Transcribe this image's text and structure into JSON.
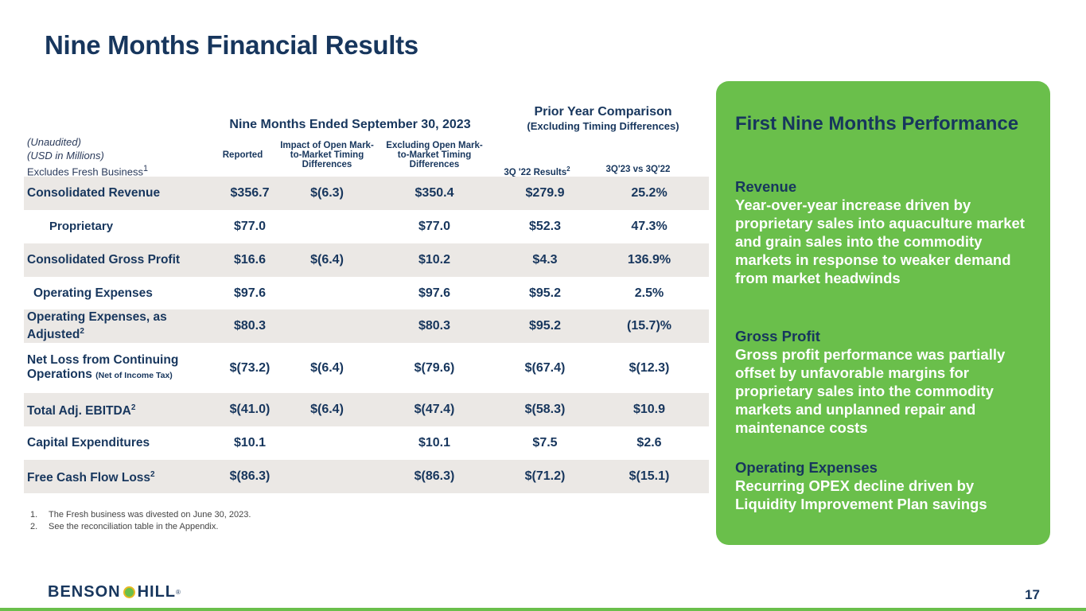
{
  "title": "Nine Months Financial Results",
  "table": {
    "group1_header": "Nine Months Ended September 30, 2023",
    "group2_header_line1": "Prior Year Comparison",
    "group2_header_line2": "(Excluding Timing Differences)",
    "meta_line1": "(Unaudited)",
    "meta_line2": "(USD in Millions)",
    "meta_line3": "Excludes Fresh Business",
    "meta_line3_sup": "1",
    "col_reported": "Reported",
    "col_impact": "Impact of Open Mark-to-Market Timing Differences",
    "col_excluding": "Excluding Open Mark-to-Market Timing Differences",
    "col_3q22": "3Q '22 Results",
    "col_3q22_sup": "2",
    "col_vs": "3Q'23 vs 3Q'22",
    "rows": [
      {
        "label": "Consolidated  Revenue",
        "sup": "",
        "sub": "",
        "reported": "$356.7",
        "impact": "$(6.3)",
        "excluding": "$350.4",
        "prior": "$279.9",
        "vs": "25.2%"
      },
      {
        "label": "Proprietary",
        "sup": "",
        "sub": "",
        "reported": "$77.0",
        "impact": "",
        "excluding": "$77.0",
        "prior": "$52.3",
        "vs": "47.3%"
      },
      {
        "label": "Consolidated Gross Profit",
        "sup": "",
        "sub": "",
        "reported": "$16.6",
        "impact": "$(6.4)",
        "excluding": "$10.2",
        "prior": "$4.3",
        "vs": "136.9%"
      },
      {
        "label": "Operating Expenses",
        "sup": "",
        "sub": "",
        "reported": "$97.6",
        "impact": "",
        "excluding": "$97.6",
        "prior": "$95.2",
        "vs": "2.5%"
      },
      {
        "label": "Operating Expenses, as Adjusted",
        "sup": "2",
        "sub": "",
        "reported": "$80.3",
        "impact": "",
        "excluding": "$80.3",
        "prior": "$95.2",
        "vs": "(15.7)%"
      },
      {
        "label": "Net Loss from Continuing Operations",
        "sup": "",
        "sub": "(Net of Income Tax)",
        "reported": "$(73.2)",
        "impact": "$(6.4)",
        "excluding": "$(79.6)",
        "prior": "$(67.4)",
        "vs": "$(12.3)"
      },
      {
        "label": "Total Adj. EBITDA",
        "sup": "2",
        "sub": "",
        "reported": "$(41.0)",
        "impact": "$(6.4)",
        "excluding": "$(47.4)",
        "prior": "$(58.3)",
        "vs": "$10.9"
      },
      {
        "label": "Capital Expenditures",
        "sup": "",
        "sub": "",
        "reported": "$10.1",
        "impact": "",
        "excluding": "$10.1",
        "prior": "$7.5",
        "vs": "$2.6"
      },
      {
        "label": "Free Cash Flow Loss",
        "sup": "2",
        "sub": "",
        "reported": "$(86.3)",
        "impact": "",
        "excluding": "$(86.3)",
        "prior": "$(71.2)",
        "vs": "$(15.1)"
      }
    ]
  },
  "footnotes": [
    {
      "num": "1.",
      "text": "The Fresh business was divested on June 30, 2023."
    },
    {
      "num": "2.",
      "text": "See the reconciliation table in the Appendix."
    }
  ],
  "panel": {
    "title": "First Nine Months Performance",
    "sections": [
      {
        "heading": "Revenue",
        "body": "Year-over-year increase driven by proprietary sales into aquaculture market and grain sales into the commodity markets in response to weaker demand from market headwinds"
      },
      {
        "heading": "Gross Profit",
        "body": "Gross profit performance was partially offset by unfavorable margins for proprietary sales into the commodity markets and unplanned repair and maintenance costs"
      },
      {
        "heading": "Operating Expenses",
        "body": "Recurring OPEX decline driven by Liquidity Improvement Plan savings"
      }
    ]
  },
  "footer": {
    "logo_left": "BENSON",
    "logo_right": "HILL",
    "logo_mark": "®",
    "page_number": "17"
  },
  "colors": {
    "brand_green": "#6abf4b",
    "navy": "#17365d",
    "row_shade": "#ebe8e5"
  }
}
